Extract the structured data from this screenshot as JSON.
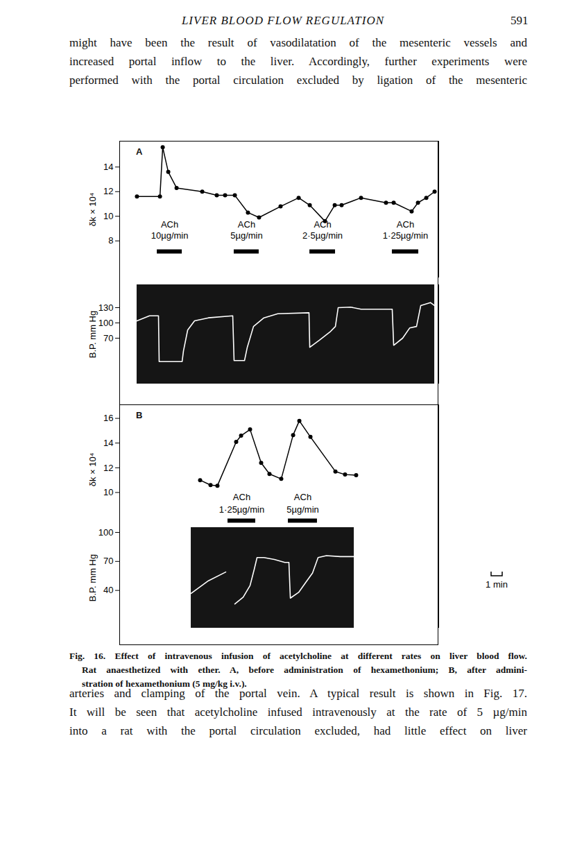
{
  "header": {
    "title": "LIVER BLOOD FLOW REGULATION",
    "page": "591"
  },
  "text_before": [
    "might have been the result of vasodilatation of the mesenteric vessels and",
    "increased portal inflow to the liver. Accordingly, further experiments were",
    "performed with the portal circulation excluded by ligation of the mesenteric"
  ],
  "chart_data": [
    {
      "type": "line",
      "title": "A",
      "ylabel": "δk × 10⁴",
      "marker": "dot",
      "color": "#000000",
      "x": [
        1.56,
        3.63,
        3.88,
        4.38,
        5.13,
        7.44,
        8.75,
        9.5,
        10.38,
        11.56,
        12.56,
        14.5,
        16.13,
        17.13,
        18.5,
        19.38,
        20.0,
        21.75,
        24.0,
        24.69,
        26.31,
        26.88,
        27.63,
        28.38
      ],
      "values": [
        11.6,
        11.6,
        15.6,
        13.6,
        12.3,
        12.0,
        11.7,
        11.7,
        11.7,
        10.3,
        9.9,
        10.8,
        11.5,
        10.9,
        9.6,
        10.9,
        10.9,
        11.5,
        11.1,
        11.1,
        10.4,
        11.1,
        11.5,
        12.0
      ],
      "xlim": [
        0,
        28.75
      ],
      "ylim": [
        5,
        16.1
      ],
      "yticks": [
        8,
        10,
        12,
        14
      ],
      "tick_labels": "y",
      "infusions": [
        {
          "label": "ACh",
          "dose": "10µg/min",
          "start": 3.38,
          "end": 5.63
        },
        {
          "label": "ACh",
          "dose": "5µg/min",
          "start": 10.31,
          "end": 12.56
        },
        {
          "label": "ACh",
          "dose": "2·5µg/min",
          "start": 17.13,
          "end": 19.44
        },
        {
          "label": "ACh",
          "dose": "1·25µg/min",
          "start": 24.56,
          "end": 26.94
        }
      ]
    },
    {
      "type": "line",
      "ylabel": "B.P. mm Hg",
      "marker": "none",
      "color": "#ffffff",
      "x": [
        1.56,
        2.69,
        3.5,
        3.56,
        5.63,
        5.75,
        6.13,
        6.75,
        8.0,
        10.19,
        10.31,
        11.25,
        11.5,
        12.06,
        13.0,
        14.25,
        17.06,
        17.13,
        18.0,
        18.94,
        19.44,
        19.69,
        20.81,
        21.75,
        24.56,
        24.69,
        25.5,
        26.13,
        26.75,
        27.13,
        28.0,
        28.38
      ],
      "values": [
        104,
        114,
        114,
        24,
        24,
        45,
        86,
        104,
        110,
        114,
        26,
        26,
        52,
        93,
        110,
        118,
        120,
        52,
        66,
        82,
        93,
        130,
        131,
        127,
        127,
        56,
        70,
        90,
        93,
        134,
        140,
        134
      ],
      "xlim": [
        0,
        28.75
      ],
      "ylim": [
        -20,
        175
      ],
      "yticks": [
        70,
        100,
        130
      ],
      "tick_labels": "y"
    },
    {
      "type": "line",
      "title": "B",
      "ylabel": "δk × 10⁴",
      "marker": "dot",
      "color": "#000000",
      "x": [
        7.25,
        8.19,
        8.81,
        10.5,
        10.94,
        11.75,
        12.75,
        13.5,
        14.56,
        15.63,
        16.19,
        17.19,
        19.44,
        20.31,
        21.31
      ],
      "values": [
        11.0,
        10.6,
        10.55,
        14.1,
        14.6,
        15.1,
        12.4,
        11.5,
        11.1,
        14.65,
        15.8,
        14.5,
        11.7,
        11.45,
        11.4
      ],
      "xlim": [
        0,
        28.75
      ],
      "ylim": [
        6.6,
        17.1
      ],
      "yticks": [
        10,
        12,
        14,
        16
      ],
      "tick_labels": "y",
      "infusions": [
        {
          "label": "ACh",
          "dose": "1·25µg/min",
          "start": 9.75,
          "end": 12.25
        },
        {
          "label": "ACh",
          "dose": "5µg/min",
          "start": 15.19,
          "end": 17.81
        }
      ]
    },
    {
      "type": "line",
      "ylabel": "B.P. mm Hg",
      "marker": "none",
      "color": "#ffffff",
      "x": [
        6.44,
        8.0,
        9.56,
        9.94,
        10.38,
        11.13,
        11.75,
        12.13,
        12.38,
        13.0,
        13.94,
        14.88,
        15.25,
        15.38,
        16.13,
        16.75,
        17.38,
        17.88,
        18.63,
        19.88,
        21.13
      ],
      "values": [
        37,
        50,
        59,
        null,
        26,
        33,
        45,
        62,
        74,
        74,
        72,
        69,
        69,
        32,
        38,
        48,
        58,
        74,
        76,
        75,
        75
      ],
      "xlim": [
        0,
        28.75
      ],
      "ylim": [
        1,
        105
      ],
      "yticks": [
        40,
        70,
        100
      ],
      "tick_labels": "y",
      "scale_bar": {
        "minutes": 1,
        "label": "1 min"
      }
    }
  ],
  "caption": [
    "Fig. 16. Effect of intravenous infusion of acetylcholine at different rates on liver blood flow.",
    "Rat anaesthetized with ether. A, before administration of hexamethonium; B, after admini-",
    "stration of hexamethonium (5 mg/kg i.v.)."
  ],
  "text_after": [
    "arteries and clamping of the portal vein. A typical result is shown in Fig. 17.",
    "It will be seen that acetylcholine infused intravenously at the rate of 5 µg/min",
    "into a rat with the portal circulation excluded, had little effect on liver"
  ]
}
